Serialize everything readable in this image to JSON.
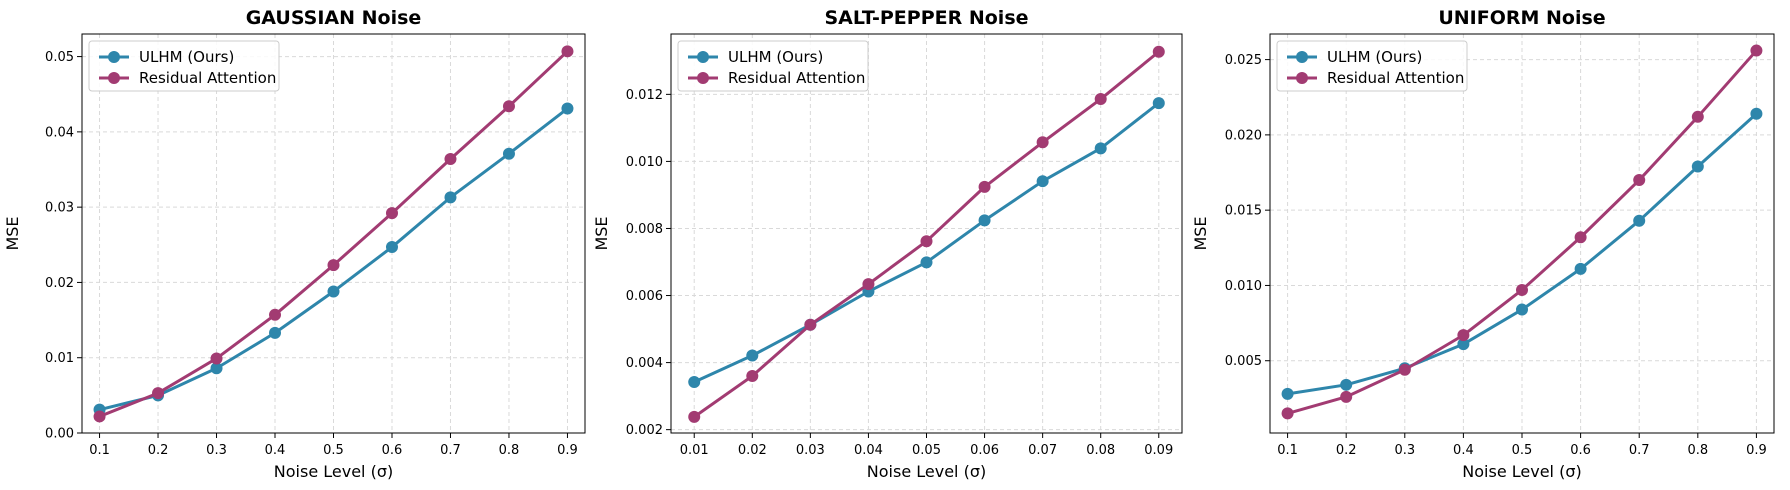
{
  "chart_data": [
    {
      "type": "line",
      "title": "GAUSSIAN Noise",
      "xlabel": "Noise Level (σ)",
      "ylabel": "MSE",
      "x": [
        0.1,
        0.2,
        0.3,
        0.4,
        0.5,
        0.6,
        0.7,
        0.8,
        0.9
      ],
      "xticks": [
        "0.1",
        "0.2",
        "0.3",
        "0.4",
        "0.5",
        "0.6",
        "0.7",
        "0.8",
        "0.9"
      ],
      "xlim": [
        0.07,
        0.93
      ],
      "ylim": [
        0.0,
        0.053
      ],
      "yticks": [
        0.0,
        0.01,
        0.02,
        0.03,
        0.04,
        0.05
      ],
      "ytick_labels": [
        "0.00",
        "0.01",
        "0.02",
        "0.03",
        "0.04",
        "0.05"
      ],
      "grid": true,
      "legend_position": "top-left",
      "series": [
        {
          "name": "ULHM (Ours)",
          "color": "#2e86ab",
          "values": [
            0.0031,
            0.005,
            0.0086,
            0.0133,
            0.0188,
            0.0247,
            0.0313,
            0.0371,
            0.0431
          ]
        },
        {
          "name": "Residual Attention",
          "color": "#a23b72",
          "values": [
            0.0022,
            0.0053,
            0.0099,
            0.0157,
            0.0223,
            0.0292,
            0.0364,
            0.0434,
            0.0507
          ]
        }
      ]
    },
    {
      "type": "line",
      "title": "SALT-PEPPER Noise",
      "xlabel": "Noise Level (σ)",
      "ylabel": "MSE",
      "x": [
        0.01,
        0.02,
        0.03,
        0.04,
        0.05,
        0.06,
        0.07,
        0.08,
        0.09
      ],
      "xticks": [
        "0.01",
        "0.02",
        "0.03",
        "0.04",
        "0.05",
        "0.06",
        "0.07",
        "0.08",
        "0.09"
      ],
      "xlim": [
        0.006,
        0.094
      ],
      "ylim": [
        0.0019,
        0.0138
      ],
      "yticks": [
        0.002,
        0.004,
        0.006,
        0.008,
        0.01,
        0.012
      ],
      "ytick_labels": [
        "0.002",
        "0.004",
        "0.006",
        "0.008",
        "0.010",
        "0.012"
      ],
      "grid": true,
      "legend_position": "top-left",
      "series": [
        {
          "name": "ULHM (Ours)",
          "color": "#2e86ab",
          "values": [
            0.00342,
            0.00421,
            0.00513,
            0.00612,
            0.00699,
            0.00824,
            0.00941,
            0.01039,
            0.01174
          ]
        },
        {
          "name": "Residual Attention",
          "color": "#a23b72",
          "values": [
            0.00238,
            0.0036,
            0.00513,
            0.00634,
            0.00762,
            0.00924,
            0.01057,
            0.01186,
            0.01327
          ]
        }
      ]
    },
    {
      "type": "line",
      "title": "UNIFORM Noise",
      "xlabel": "Noise Level (σ)",
      "ylabel": "MSE",
      "x": [
        0.1,
        0.2,
        0.3,
        0.4,
        0.5,
        0.6,
        0.7,
        0.8,
        0.9
      ],
      "xticks": [
        "0.1",
        "0.2",
        "0.3",
        "0.4",
        "0.5",
        "0.6",
        "0.7",
        "0.8",
        "0.9"
      ],
      "xlim": [
        0.07,
        0.93
      ],
      "ylim": [
        0.0002,
        0.0267
      ],
      "yticks": [
        0.005,
        0.01,
        0.015,
        0.02,
        0.025
      ],
      "ytick_labels": [
        "0.005",
        "0.010",
        "0.015",
        "0.020",
        "0.025"
      ],
      "grid": true,
      "legend_position": "top-left",
      "series": [
        {
          "name": "ULHM (Ours)",
          "color": "#2e86ab",
          "values": [
            0.0028,
            0.0034,
            0.0045,
            0.0061,
            0.0084,
            0.0111,
            0.0143,
            0.0179,
            0.0214
          ]
        },
        {
          "name": "Residual Attention",
          "color": "#a23b72",
          "values": [
            0.0015,
            0.0026,
            0.0044,
            0.0067,
            0.0097,
            0.0132,
            0.017,
            0.0212,
            0.0256
          ]
        }
      ]
    }
  ]
}
